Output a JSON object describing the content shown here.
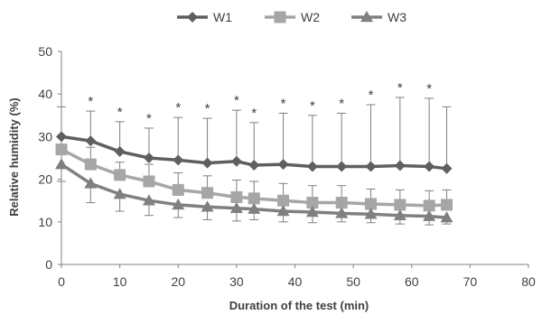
{
  "chart_data": {
    "type": "line",
    "xlabel": "Duration of the test (min)",
    "ylabel": "Relative humidity (%)",
    "xlim": [
      0,
      80
    ],
    "ylim": [
      0,
      50
    ],
    "x_ticks": [
      "0",
      "10",
      "20",
      "30",
      "40",
      "50",
      "60",
      "70",
      "80"
    ],
    "y_ticks": [
      "0",
      "10",
      "20",
      "30",
      "40",
      "50"
    ],
    "grid": false,
    "legend_position": "top",
    "x": [
      0,
      5,
      10,
      15,
      20,
      25,
      30,
      33,
      38,
      43,
      48,
      53,
      58,
      63,
      66
    ],
    "series": [
      {
        "name": "W1",
        "marker": "diamond",
        "color": "#5f5f5f",
        "values": [
          30,
          29,
          26.5,
          25,
          24.5,
          23.8,
          24.2,
          23.3,
          23.5,
          23,
          23,
          23,
          23.2,
          23,
          22.5
        ],
        "error_upper": [
          7,
          7,
          7,
          7,
          10,
          10.5,
          12,
          10,
          12,
          12,
          12.5,
          14.5,
          16,
          16,
          14.5
        ],
        "error_lower": [
          0,
          0,
          0,
          0,
          0,
          0,
          0,
          0,
          0,
          0,
          0,
          0,
          0,
          0,
          0
        ]
      },
      {
        "name": "W2",
        "marker": "square",
        "color": "#a6a6a6",
        "values": [
          27,
          23.5,
          21,
          19.5,
          17.5,
          16.8,
          15.8,
          15.5,
          15,
          14.5,
          14.5,
          14.2,
          14,
          13.8,
          14
        ],
        "error_upper": [
          3,
          4,
          3,
          4,
          4,
          4,
          4,
          4,
          4,
          4,
          4,
          3.5,
          3.5,
          3.5,
          3.5
        ],
        "error_lower": [
          0,
          0,
          0,
          0,
          0,
          0,
          0,
          0,
          0,
          0,
          0,
          0,
          0,
          0,
          0
        ]
      },
      {
        "name": "W3",
        "marker": "triangle",
        "color": "#808080",
        "values": [
          23.5,
          19,
          16.5,
          15,
          14,
          13.5,
          13.2,
          13,
          12.5,
          12.3,
          12,
          11.8,
          11.5,
          11.3,
          11
        ],
        "error_upper": [
          0,
          0,
          0,
          0,
          0,
          0,
          0,
          0,
          0,
          0,
          0,
          0,
          0,
          0,
          0
        ],
        "error_lower": [
          4,
          4.5,
          4,
          3.5,
          3,
          3,
          3,
          2.5,
          2.5,
          2.5,
          2,
          2,
          2,
          2,
          1.5
        ]
      }
    ],
    "significance_marker": "*",
    "significance_x": [
      5,
      10,
      15,
      20,
      25,
      30,
      33,
      38,
      43,
      48,
      53,
      58,
      63
    ]
  }
}
